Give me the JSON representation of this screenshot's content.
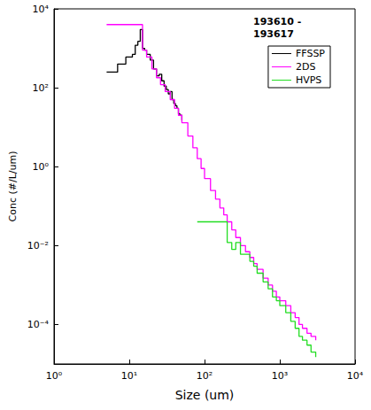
{
  "chart_data": {
    "type": "line",
    "title": "193610 - 193617",
    "x_label": "Size (um)",
    "y_label": "Conc (#/L/um)",
    "log": true,
    "grid": false,
    "legend": "upper right",
    "line_style": "steps",
    "xlim": [
      1,
      10000
    ],
    "ylim": [
      1e-05,
      10000
    ],
    "xticks": [
      {
        "value": 1,
        "label": "10⁰"
      },
      {
        "value": 10,
        "label": "10¹"
      },
      {
        "value": 100,
        "label": "10²"
      },
      {
        "value": 1000,
        "label": "10³"
      },
      {
        "value": 10000,
        "label": "10⁴"
      }
    ],
    "yticks": [
      {
        "value": 0.0001,
        "label": "10⁻⁴"
      },
      {
        "value": 0.01,
        "label": "10⁻²"
      },
      {
        "value": 1,
        "label": "10⁰"
      },
      {
        "value": 100,
        "label": "10²"
      },
      {
        "value": 10000,
        "label": "10⁴"
      }
    ],
    "series": [
      {
        "name": "FFSSP",
        "color": "#000000",
        "x": [
          5,
          6,
          7,
          8,
          9,
          10,
          11,
          12,
          13,
          14,
          15,
          16,
          17,
          19,
          21,
          23,
          25,
          27,
          29,
          31,
          33,
          35,
          37,
          39,
          41,
          43,
          45,
          47,
          50
        ],
        "values": [
          250,
          250,
          400,
          400,
          600,
          600,
          700,
          1200,
          1500,
          3000,
          1000,
          900,
          700,
          500,
          300,
          200,
          220,
          150,
          110,
          90,
          70,
          80,
          50,
          40,
          35,
          30,
          22,
          20,
          15
        ]
      },
      {
        "name": "2DS",
        "color": "#ff00ff",
        "x": [
          5,
          15,
          17,
          20,
          23,
          26,
          30,
          35,
          40,
          45,
          50,
          60,
          70,
          80,
          90,
          100,
          120,
          140,
          160,
          180,
          200,
          230,
          260,
          300,
          350,
          400,
          450,
          500,
          600,
          700,
          800,
          900,
          1000,
          1200,
          1400,
          1600,
          1800,
          2000,
          2300,
          2600,
          3000
        ],
        "values": [
          4000,
          900,
          600,
          300,
          180,
          120,
          80,
          50,
          30,
          20,
          13,
          6,
          3,
          1.6,
          0.9,
          0.5,
          0.25,
          0.15,
          0.09,
          0.06,
          0.04,
          0.025,
          0.016,
          0.01,
          0.007,
          0.005,
          0.0035,
          0.0025,
          0.0015,
          0.001,
          0.0007,
          0.0005,
          0.0004,
          0.0003,
          0.0002,
          0.00015,
          0.0001,
          8e-05,
          6e-05,
          5e-05,
          4e-05
        ]
      },
      {
        "name": "HVPS",
        "color": "#22dd22",
        "x": [
          80,
          200,
          230,
          260,
          300,
          350,
          400,
          450,
          500,
          600,
          700,
          800,
          900,
          1000,
          1200,
          1400,
          1600,
          1800,
          2000,
          2300,
          2600,
          3000
        ],
        "values": [
          0.04,
          0.012,
          0.008,
          0.012,
          0.006,
          0.006,
          0.004,
          0.003,
          0.002,
          0.0012,
          0.0008,
          0.0005,
          0.0004,
          0.0003,
          0.0002,
          0.00012,
          8e-05,
          5e-05,
          4e-05,
          3e-05,
          2e-05,
          1.5e-05
        ]
      }
    ]
  }
}
